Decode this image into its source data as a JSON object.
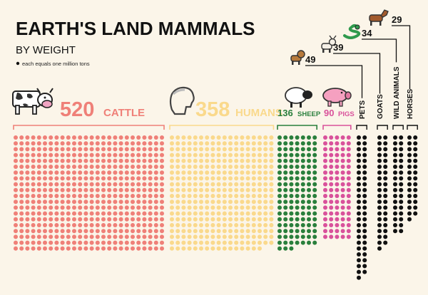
{
  "title": "EARTH'S LAND MAMMALS",
  "subtitle": "BY WEIGHT",
  "note": "each equals one million tons",
  "chart_data": {
    "type": "dot-matrix",
    "title": "EARTH'S LAND MAMMALS",
    "subtitle": "BY WEIGHT",
    "unit_note": "each equals one million tons",
    "categories": [
      "CATTLE",
      "HUMANS",
      "SHEEP",
      "PIGS",
      "PETS",
      "GOATS",
      "WILD ANIMALS",
      "HORSES"
    ],
    "values": [
      520,
      358,
      136,
      90,
      49,
      39,
      34,
      29
    ],
    "colors": [
      "#ef8078",
      "#fad98c",
      "#2a7f3c",
      "#d9519b",
      "#111111",
      "#111111",
      "#111111",
      "#111111"
    ],
    "label_styles": [
      "large-horizontal",
      "large-horizontal",
      "small-horizontal",
      "small-horizontal",
      "vertical",
      "vertical",
      "vertical",
      "vertical"
    ],
    "icons": [
      "cow-icon",
      "human-head-icon",
      "sheep-icon",
      "pig-icon",
      "dog-icon",
      "goat-icon",
      "snake-icon",
      "horse-icon"
    ],
    "legend": "none",
    "grid": false
  }
}
